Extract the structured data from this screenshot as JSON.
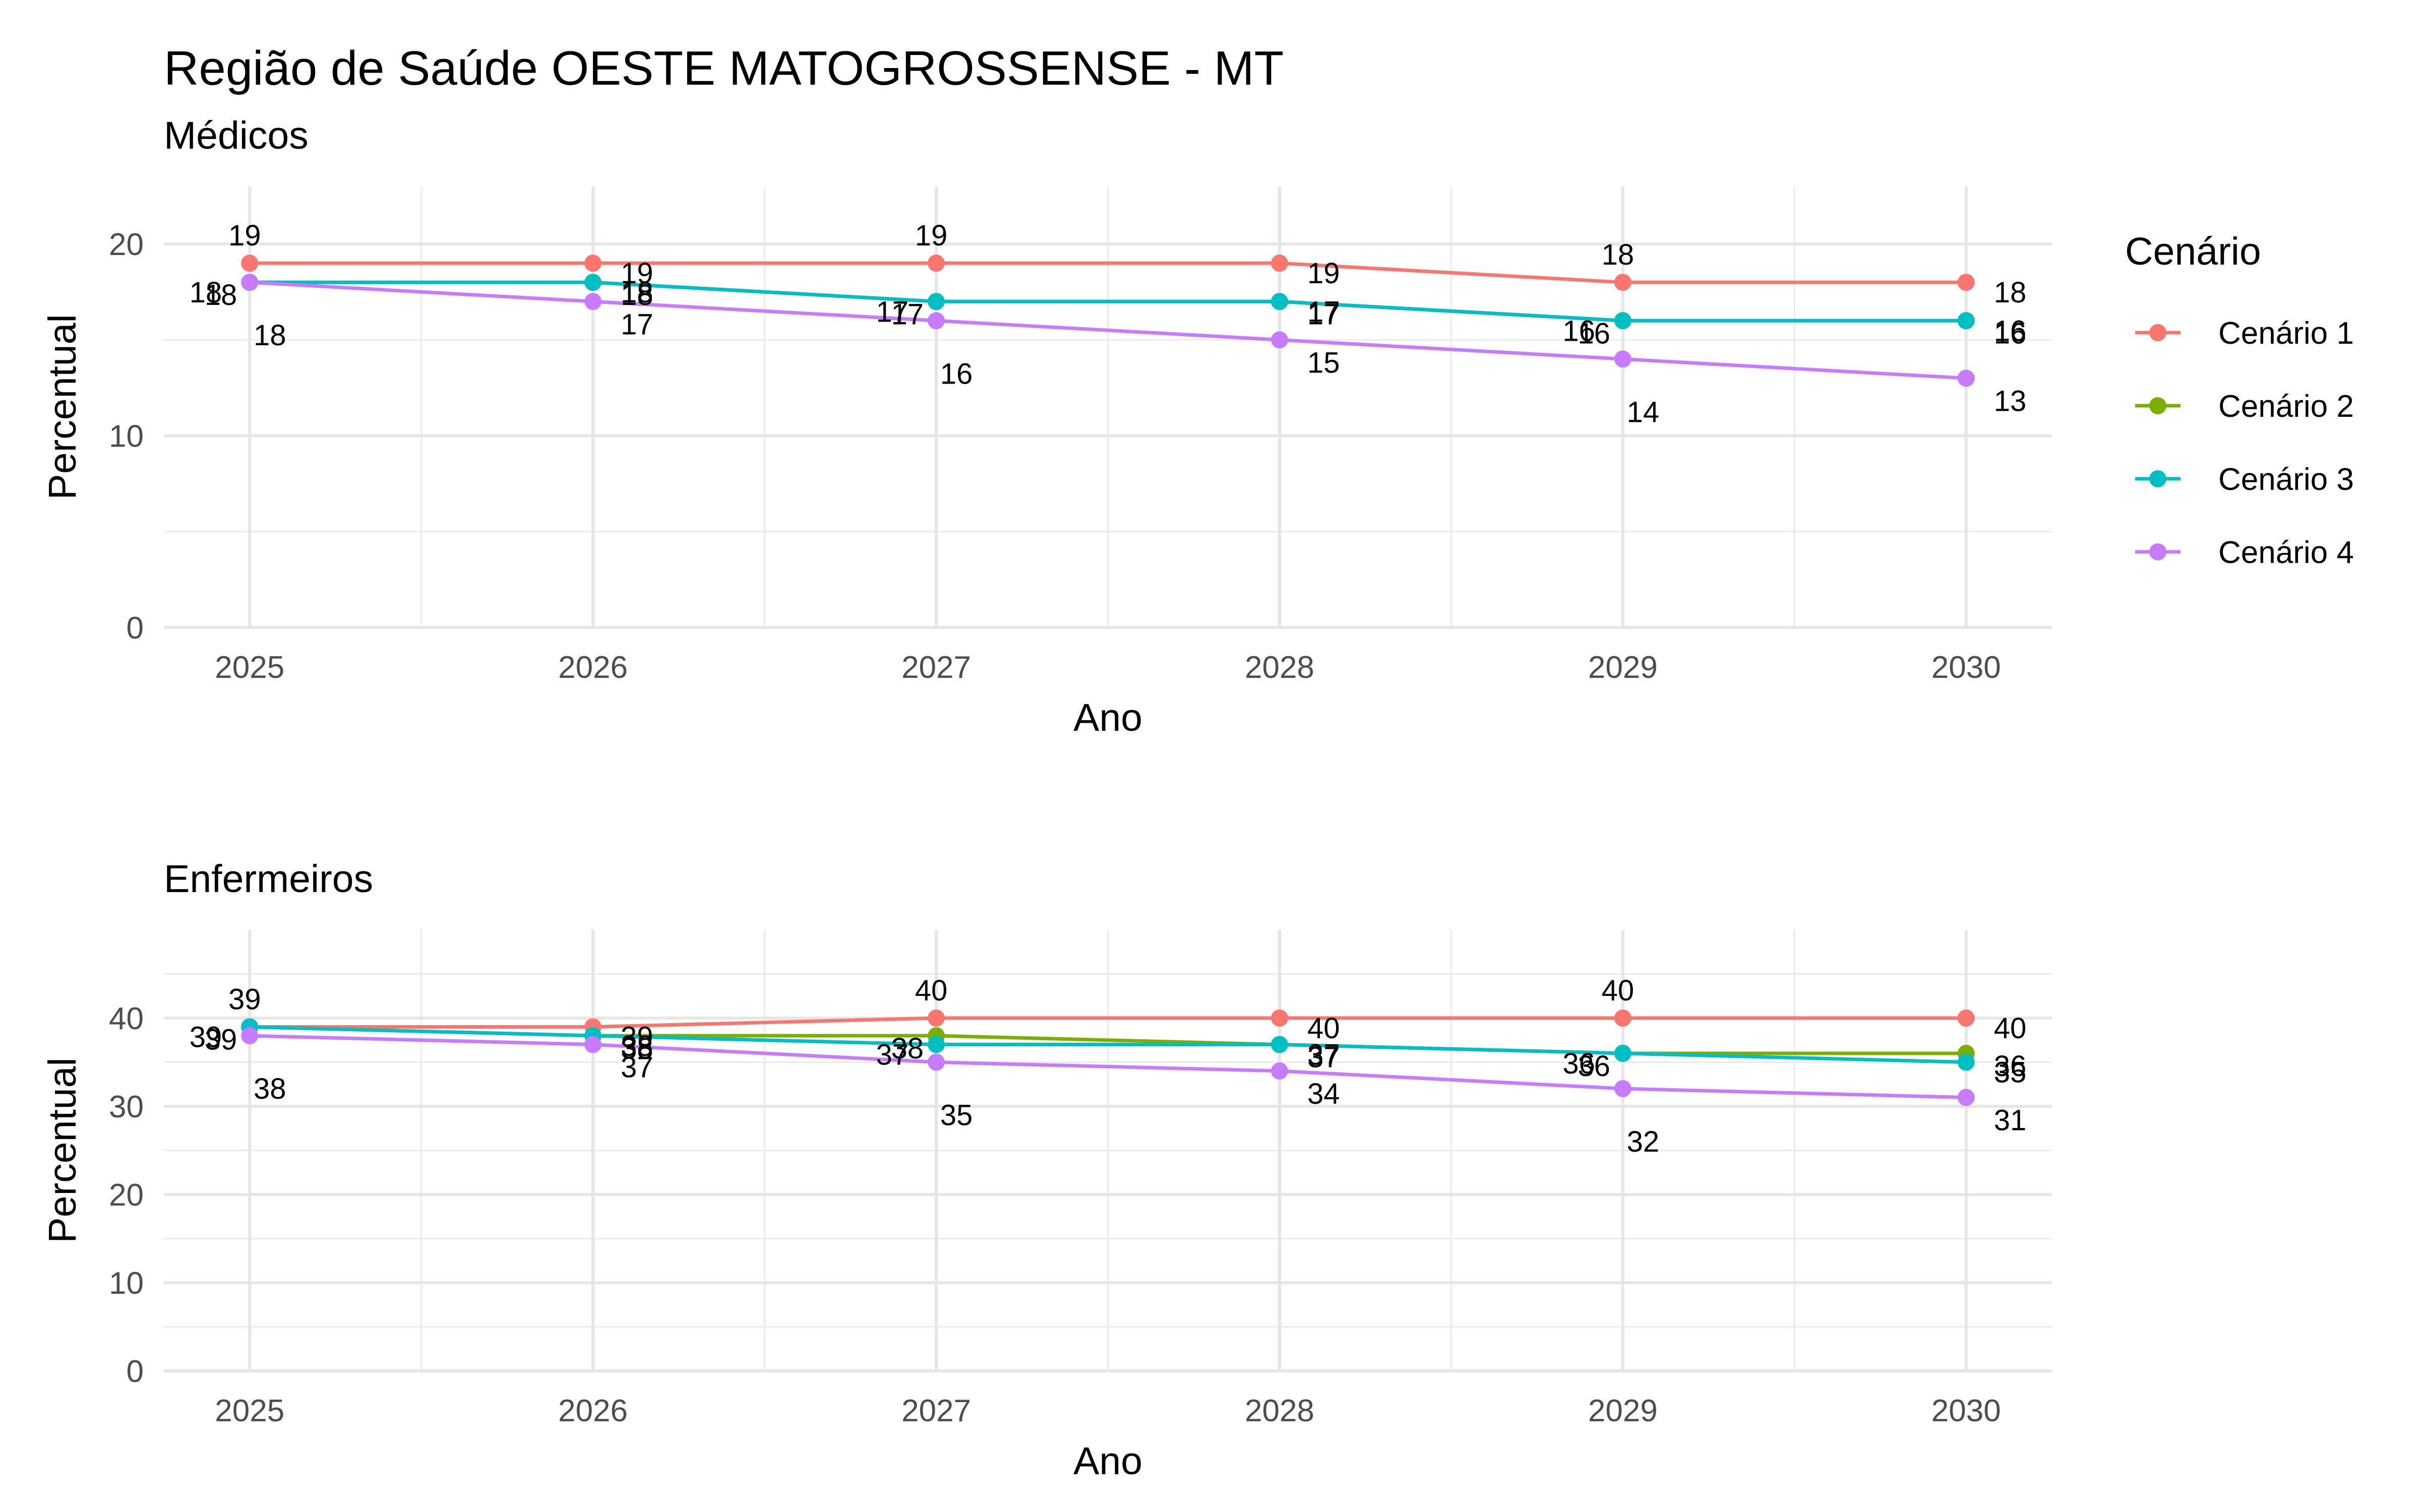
{
  "title": "Região de Saúde OESTE MATOGROSSENSE - MT",
  "legend": {
    "title": "Cenário",
    "items": [
      {
        "label": "Cenário 1",
        "color": "#F8766D"
      },
      {
        "label": "Cenário 2",
        "color": "#7CAE00"
      },
      {
        "label": "Cenário 3",
        "color": "#00BFC4"
      },
      {
        "label": "Cenário 4",
        "color": "#C77CFF"
      }
    ]
  },
  "chart_data": [
    {
      "type": "line",
      "subtitle": "Médicos",
      "xlabel": "Ano",
      "ylabel": "Percentual",
      "x": [
        2025,
        2026,
        2027,
        2028,
        2029,
        2030
      ],
      "ylim": [
        0,
        23
      ],
      "yticks": [
        0,
        10,
        20
      ],
      "grid": true,
      "series": [
        {
          "name": "Cenário 1",
          "values": [
            19,
            19,
            19,
            19,
            18,
            18
          ]
        },
        {
          "name": "Cenário 2",
          "values": [
            18,
            18,
            17,
            17,
            16,
            16
          ]
        },
        {
          "name": "Cenário 3",
          "values": [
            18,
            18,
            17,
            17,
            16,
            16
          ]
        },
        {
          "name": "Cenário 4",
          "values": [
            18,
            17,
            16,
            15,
            14,
            13
          ]
        }
      ]
    },
    {
      "type": "line",
      "subtitle": "Enfermeiros",
      "xlabel": "Ano",
      "ylabel": "Percentual",
      "x": [
        2025,
        2026,
        2027,
        2028,
        2029,
        2030
      ],
      "ylim": [
        0,
        50
      ],
      "yticks": [
        0,
        10,
        20,
        30,
        40
      ],
      "grid": true,
      "series": [
        {
          "name": "Cenário 1",
          "values": [
            39,
            39,
            40,
            40,
            40,
            40
          ]
        },
        {
          "name": "Cenário 2",
          "values": [
            39,
            38,
            38,
            37,
            36,
            36
          ]
        },
        {
          "name": "Cenário 3",
          "values": [
            39,
            38,
            37,
            37,
            36,
            35
          ]
        },
        {
          "name": "Cenário 4",
          "values": [
            38,
            37,
            35,
            34,
            32,
            31
          ]
        }
      ]
    }
  ]
}
